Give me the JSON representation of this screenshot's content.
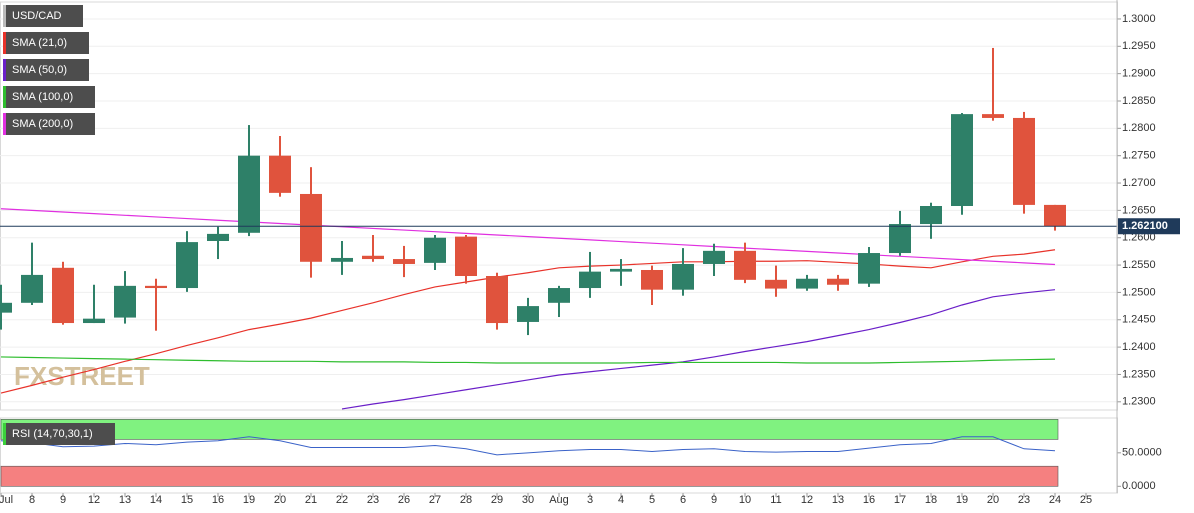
{
  "chart_data": [
    {
      "type": "candlestick",
      "symbol": "USD/CAD",
      "watermark": "FXSTREET",
      "categories": [
        "Jul",
        "8",
        "9",
        "12",
        "13",
        "14",
        "15",
        "16",
        "19",
        "20",
        "21",
        "22",
        "23",
        "26",
        "27",
        "28",
        "29",
        "30",
        "Aug",
        "3",
        "4",
        "5",
        "6",
        "9",
        "10",
        "11",
        "12",
        "13",
        "16",
        "17",
        "18",
        "19",
        "20",
        "23",
        "24",
        "25"
      ],
      "open": [
        1.2463,
        1.2481,
        1.2545,
        1.2444,
        1.2454,
        1.2512,
        1.2508,
        1.2594,
        1.2609,
        1.275,
        1.268,
        1.2556,
        1.2567,
        1.2561,
        1.2554,
        1.2602,
        1.253,
        1.2446,
        1.2481,
        1.2508,
        1.2538,
        1.2541,
        1.2505,
        1.2552,
        1.2576,
        1.2523,
        1.2507,
        1.2525,
        1.2516,
        1.2572,
        1.2625,
        1.2658,
        1.2826,
        1.2819,
        1.266,
        null
      ],
      "high": [
        1.2514,
        1.2591,
        1.2556,
        1.2514,
        1.2539,
        1.2525,
        1.2612,
        1.262,
        1.2806,
        1.2786,
        1.2729,
        1.2594,
        1.2605,
        1.2585,
        1.2605,
        1.2605,
        1.2536,
        1.249,
        1.2512,
        1.2574,
        1.2561,
        1.2549,
        1.2581,
        1.2589,
        1.2591,
        1.2549,
        1.2532,
        1.2532,
        1.2583,
        1.2649,
        1.2664,
        1.2828,
        1.2947,
        1.283,
        1.266,
        null
      ],
      "low": [
        1.2432,
        1.2477,
        1.2441,
        1.2444,
        1.2443,
        1.243,
        1.2501,
        1.2561,
        1.2603,
        1.2675,
        1.2527,
        1.2532,
        1.2556,
        1.2528,
        1.2541,
        1.2516,
        1.2432,
        1.2422,
        1.2455,
        1.249,
        1.2512,
        1.2477,
        1.2494,
        1.253,
        1.2517,
        1.2492,
        1.2503,
        1.2503,
        1.251,
        1.2567,
        1.2598,
        1.2642,
        1.2814,
        1.2644,
        1.2613,
        null
      ],
      "close": [
        1.2481,
        1.2532,
        1.2444,
        1.2452,
        1.2512,
        1.2508,
        1.2592,
        1.2607,
        1.275,
        1.2682,
        1.2556,
        1.2563,
        1.2561,
        1.2552,
        1.26,
        1.253,
        1.2444,
        1.2475,
        1.2508,
        1.2538,
        1.2543,
        1.2505,
        1.2552,
        1.2576,
        1.2523,
        1.2507,
        1.2525,
        1.2514,
        1.2572,
        1.2625,
        1.2658,
        1.2826,
        1.2819,
        1.266,
        1.2621,
        null
      ],
      "up_color": "#2e8068",
      "down_color": "#e0533d",
      "series": [
        {
          "name": "SMA (21,0)",
          "color": "#e8322a",
          "values": [
            1.2316,
            1.233,
            1.2345,
            1.2359,
            1.2374,
            1.2388,
            1.2403,
            1.2417,
            1.2432,
            1.2442,
            1.2453,
            1.2467,
            1.2481,
            1.2496,
            1.251,
            1.2519,
            1.2528,
            1.2536,
            1.2545,
            1.2548,
            1.255,
            1.2553,
            1.2556,
            1.2556,
            1.2557,
            1.2557,
            1.2558,
            1.2555,
            1.2552,
            1.2548,
            1.2545,
            1.2556,
            1.2566,
            1.257,
            1.2578,
            null
          ]
        },
        {
          "name": "SMA (50,0)",
          "color": "#6a1fc8",
          "values": [
            null,
            null,
            null,
            null,
            null,
            null,
            null,
            null,
            null,
            null,
            null,
            1.2287,
            1.2296,
            1.2304,
            1.2313,
            1.2322,
            1.2331,
            1.234,
            1.2349,
            1.2355,
            1.2361,
            1.2367,
            1.2373,
            1.2382,
            1.2392,
            1.2401,
            1.241,
            1.2421,
            1.2432,
            1.2445,
            1.2459,
            1.2477,
            1.2492,
            1.2499,
            1.2505,
            null
          ]
        },
        {
          "name": "SMA (100,0)",
          "color": "#2ebd2e",
          "values": [
            1.2382,
            1.2381,
            1.238,
            1.2379,
            1.2378,
            1.2377,
            1.2376,
            1.2375,
            1.2374,
            1.2374,
            1.2374,
            1.2373,
            1.2373,
            1.2373,
            1.2372,
            1.2372,
            1.2371,
            1.2371,
            1.2371,
            1.2371,
            1.2371,
            1.2372,
            1.2372,
            1.2372,
            1.2372,
            1.2372,
            1.2371,
            1.2371,
            1.2371,
            1.2372,
            1.2373,
            1.2374,
            1.2376,
            1.2377,
            1.2378,
            null
          ]
        },
        {
          "name": "SMA (200,0)",
          "color": "#e030e0",
          "values": [
            1.2653,
            1.265,
            1.2647,
            1.2644,
            1.2641,
            1.2638,
            1.2635,
            1.2632,
            1.2629,
            1.2626,
            1.2623,
            1.262,
            1.2617,
            1.2614,
            1.2611,
            1.2608,
            1.2605,
            1.2602,
            1.2599,
            1.2596,
            1.2593,
            1.259,
            1.2587,
            1.2584,
            1.2581,
            1.2578,
            1.2575,
            1.2572,
            1.2569,
            1.2566,
            1.2563,
            1.256,
            1.2557,
            1.2554,
            1.2551,
            null
          ]
        }
      ],
      "last_price": {
        "value": 1.2621,
        "label": "1.262100"
      },
      "ylim": [
        1.2285,
        1.3031
      ],
      "yticks": [
        {
          "value": 1.23,
          "label": "1.2300"
        },
        {
          "value": 1.235,
          "label": "1.2350"
        },
        {
          "value": 1.24,
          "label": "1.2400"
        },
        {
          "value": 1.245,
          "label": "1.2450"
        },
        {
          "value": 1.25,
          "label": "1.2500"
        },
        {
          "value": 1.255,
          "label": "1.2550"
        },
        {
          "value": 1.26,
          "label": "1.2600"
        },
        {
          "value": 1.265,
          "label": "1.2650"
        },
        {
          "value": 1.27,
          "label": "1.2700"
        },
        {
          "value": 1.275,
          "label": "1.2750"
        },
        {
          "value": 1.28,
          "label": "1.2800"
        },
        {
          "value": 1.285,
          "label": "1.2850"
        },
        {
          "value": 1.29,
          "label": "1.2900"
        },
        {
          "value": 1.295,
          "label": "1.2950"
        },
        {
          "value": 1.3,
          "label": "1.3000"
        }
      ],
      "grid": true
    },
    {
      "type": "line",
      "title": "RSI (14,70,30,1)",
      "color": "#3a62c8",
      "values": [
        68,
        65,
        59,
        60,
        64,
        62,
        66,
        68,
        74,
        68,
        58,
        58,
        58,
        58,
        61,
        56,
        47,
        50,
        53,
        55,
        55,
        52,
        55,
        56,
        52,
        51,
        52,
        52,
        57,
        62,
        64,
        74,
        74,
        56,
        53,
        null
      ],
      "bands": [
        {
          "from": 70,
          "to": 100,
          "color": "#80f280"
        },
        {
          "from": 0,
          "to": 30,
          "color": "#f58080"
        }
      ],
      "ylim": [
        -10,
        102
      ],
      "yticks": [
        {
          "value": 50,
          "label": "50.0000"
        },
        {
          "value": 0,
          "label": "0.0000"
        }
      ]
    }
  ]
}
